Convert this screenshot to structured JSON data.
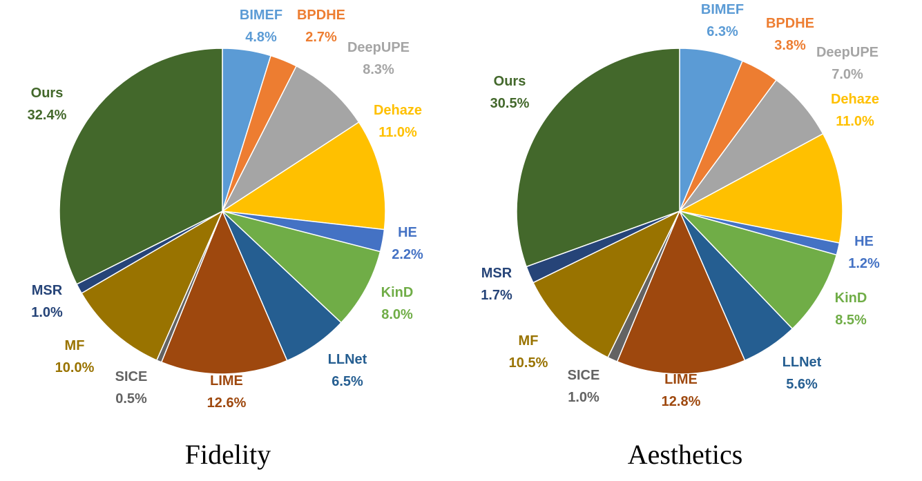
{
  "chart_data": [
    {
      "type": "pie",
      "title": "Fidelity",
      "slices": [
        {
          "name": "BIMEF",
          "value": 4.8,
          "label": "4.8%",
          "color": "#5b9bd5"
        },
        {
          "name": "BPDHE",
          "value": 2.7,
          "label": "2.7%",
          "color": "#ed7d31"
        },
        {
          "name": "DeepUPE",
          "value": 8.3,
          "label": "8.3%",
          "color": "#a5a5a5"
        },
        {
          "name": "Dehaze",
          "value": 11.0,
          "label": "11.0%",
          "color": "#ffc000"
        },
        {
          "name": "HE",
          "value": 2.2,
          "label": "2.2%",
          "color": "#4472c4"
        },
        {
          "name": "KinD",
          "value": 8.0,
          "label": "8.0%",
          "color": "#70ad47"
        },
        {
          "name": "LLNet",
          "value": 6.5,
          "label": "6.5%",
          "color": "#255e91"
        },
        {
          "name": "LIME",
          "value": 12.6,
          "label": "12.6%",
          "color": "#9e480e"
        },
        {
          "name": "SICE",
          "value": 0.5,
          "label": "0.5%",
          "color": "#636363"
        },
        {
          "name": "MF",
          "value": 10.0,
          "label": "10.0%",
          "color": "#997300"
        },
        {
          "name": "MSR",
          "value": 1.0,
          "label": "1.0%",
          "color": "#264478"
        },
        {
          "name": "Ours",
          "value": 32.4,
          "label": "32.4%",
          "color": "#43682b"
        }
      ]
    },
    {
      "type": "pie",
      "title": "Aesthetics",
      "slices": [
        {
          "name": "BIMEF",
          "value": 6.3,
          "label": "6.3%",
          "color": "#5b9bd5"
        },
        {
          "name": "BPDHE",
          "value": 3.8,
          "label": "3.8%",
          "color": "#ed7d31"
        },
        {
          "name": "DeepUPE",
          "value": 7.0,
          "label": "7.0%",
          "color": "#a5a5a5"
        },
        {
          "name": "Dehaze",
          "value": 11.0,
          "label": "11.0%",
          "color": "#ffc000"
        },
        {
          "name": "HE",
          "value": 1.2,
          "label": "1.2%",
          "color": "#4472c4"
        },
        {
          "name": "KinD",
          "value": 8.5,
          "label": "8.5%",
          "color": "#70ad47"
        },
        {
          "name": "LLNet",
          "value": 5.6,
          "label": "5.6%",
          "color": "#255e91"
        },
        {
          "name": "LIME",
          "value": 12.8,
          "label": "12.8%",
          "color": "#9e480e"
        },
        {
          "name": "SICE",
          "value": 1.0,
          "label": "1.0%",
          "color": "#636363"
        },
        {
          "name": "MF",
          "value": 10.5,
          "label": "10.5%",
          "color": "#997300"
        },
        {
          "name": "MSR",
          "value": 1.7,
          "label": "1.7%",
          "color": "#264478"
        },
        {
          "name": "Ours",
          "value": 30.5,
          "label": "30.5%",
          "color": "#43682b"
        }
      ]
    }
  ]
}
